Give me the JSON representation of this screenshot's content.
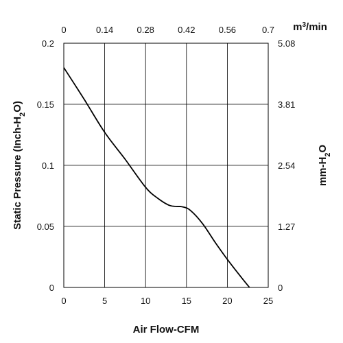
{
  "chart_data": {
    "type": "line",
    "title": "",
    "xlabel": "Air Flow-CFM",
    "ylabel": "Static Pressure (Inch-H2O)",
    "ylabel_parts": {
      "pre": "Static Pressure (Inch-H",
      "sub": "2",
      "post": "O)"
    },
    "xlim": [
      0,
      25
    ],
    "ylim": [
      0,
      0.2
    ],
    "x_ticks": [
      "0",
      "5",
      "10",
      "15",
      "20",
      "25"
    ],
    "y_ticks": [
      "0",
      "0.05",
      "0.1",
      "0.15",
      "0.2"
    ],
    "top_axis": {
      "label": "m3/min",
      "label_parts": {
        "pre": "m",
        "sup": "3",
        "post": "/min"
      },
      "ticks": [
        "0",
        "0.14",
        "0.28",
        "0.42",
        "0.56",
        "0.7"
      ]
    },
    "right_axis": {
      "label": "mm-H2O",
      "label_parts": {
        "pre": "mm-H",
        "sub": "2",
        "post": "O"
      },
      "ticks": [
        "0",
        "1.27",
        "2.54",
        "3.81",
        "5.08"
      ]
    },
    "grid": true,
    "series": [
      {
        "x": [
          0,
          2.5,
          5,
          7.5,
          10,
          11.5,
          13,
          14.5,
          15.5,
          17,
          18.5,
          20,
          21.5,
          22.7
        ],
        "y": [
          0.18,
          0.154,
          0.127,
          0.105,
          0.082,
          0.073,
          0.067,
          0.066,
          0.063,
          0.052,
          0.037,
          0.023,
          0.01,
          0
        ]
      }
    ],
    "colors": {
      "line": "#000000",
      "grid": "#000000"
    }
  }
}
